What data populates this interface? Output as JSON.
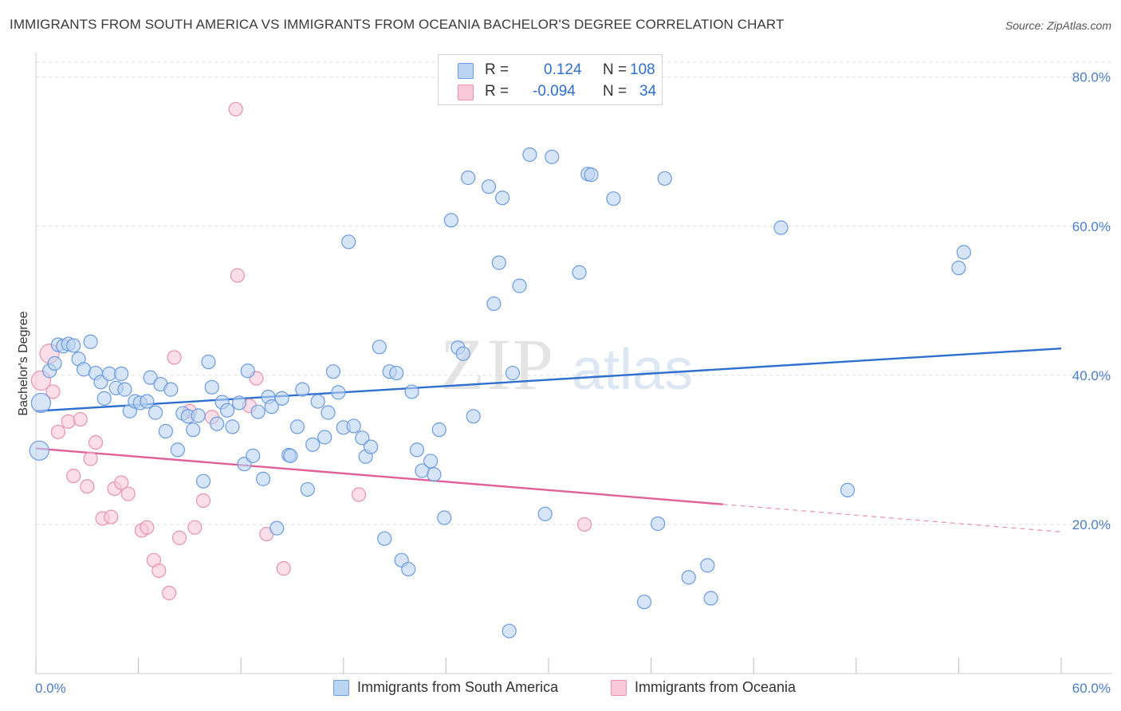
{
  "header": {
    "title": "IMMIGRANTS FROM SOUTH AMERICA VS IMMIGRANTS FROM OCEANIA BACHELOR'S DEGREE CORRELATION CHART",
    "source": "Source: ZipAtlas.com"
  },
  "legend": {
    "r_label": "R =",
    "n_label": "N =",
    "series_a": {
      "r": "0.124",
      "n": "108"
    },
    "series_b": {
      "r": "-0.094",
      "n": "34"
    }
  },
  "bottom_legend": {
    "series_a": "Immigrants from South America",
    "series_b": "Immigrants from Oceania"
  },
  "watermark": {
    "zip": "ZIP",
    "atlas": "atlas"
  },
  "chart_data": {
    "type": "scatter",
    "xlabel": "",
    "ylabel": "Bachelor's Degree",
    "xlim": [
      0,
      60
    ],
    "ylim": [
      0,
      82
    ],
    "x_tick_labels": [
      "0.0%",
      "60.0%"
    ],
    "y_ticks": [
      20,
      40,
      60,
      80
    ],
    "y_tick_labels": [
      "20.0%",
      "40.0%",
      "60.0%",
      "80.0%"
    ],
    "grid": true,
    "colors": {
      "series_a": "#6b9be0",
      "series_a_fill": "#bcd4f4",
      "series_a_line": "#2e6fcf",
      "series_b": "#e892ae",
      "series_b_fill": "#f8c8d8",
      "series_b_line": "#e0609a"
    },
    "series": [
      {
        "name": "Immigrants from South America",
        "trend": {
          "x": [
            0,
            60
          ],
          "y": [
            35.2,
            43.6
          ]
        },
        "points": [
          [
            0.3,
            36.3
          ],
          [
            0.2,
            29.9
          ],
          [
            0.8,
            40.6
          ],
          [
            1.1,
            41.6
          ],
          [
            1.3,
            44.1
          ],
          [
            1.6,
            43.9
          ],
          [
            1.9,
            44.2
          ],
          [
            2.2,
            44.0
          ],
          [
            2.5,
            42.2
          ],
          [
            2.8,
            40.8
          ],
          [
            3.2,
            44.5
          ],
          [
            3.5,
            40.3
          ],
          [
            3.8,
            39.1
          ],
          [
            4.0,
            36.9
          ],
          [
            4.3,
            40.2
          ],
          [
            4.7,
            38.3
          ],
          [
            5.0,
            40.2
          ],
          [
            5.2,
            38.1
          ],
          [
            5.5,
            35.2
          ],
          [
            5.8,
            36.5
          ],
          [
            6.1,
            36.3
          ],
          [
            6.5,
            36.5
          ],
          [
            6.7,
            39.7
          ],
          [
            7.0,
            35.0
          ],
          [
            7.3,
            38.8
          ],
          [
            7.6,
            32.5
          ],
          [
            7.9,
            38.1
          ],
          [
            8.3,
            30.0
          ],
          [
            8.6,
            34.9
          ],
          [
            8.9,
            34.5
          ],
          [
            9.2,
            32.7
          ],
          [
            9.5,
            34.6
          ],
          [
            9.8,
            25.8
          ],
          [
            10.1,
            41.8
          ],
          [
            10.3,
            38.4
          ],
          [
            10.6,
            33.5
          ],
          [
            10.9,
            36.4
          ],
          [
            11.2,
            35.3
          ],
          [
            11.5,
            33.1
          ],
          [
            11.9,
            36.3
          ],
          [
            12.2,
            28.1
          ],
          [
            12.4,
            40.6
          ],
          [
            12.7,
            29.2
          ],
          [
            13.0,
            35.1
          ],
          [
            13.3,
            26.1
          ],
          [
            13.6,
            37.1
          ],
          [
            13.8,
            35.8
          ],
          [
            14.1,
            19.5
          ],
          [
            14.4,
            36.9
          ],
          [
            14.8,
            29.3
          ],
          [
            14.9,
            29.2
          ],
          [
            15.3,
            33.1
          ],
          [
            15.6,
            38.1
          ],
          [
            15.9,
            24.7
          ],
          [
            16.2,
            30.7
          ],
          [
            16.5,
            36.5
          ],
          [
            16.9,
            31.7
          ],
          [
            17.1,
            35.0
          ],
          [
            17.4,
            40.5
          ],
          [
            17.7,
            37.7
          ],
          [
            18.0,
            33.0
          ],
          [
            18.3,
            57.9
          ],
          [
            18.6,
            33.2
          ],
          [
            19.1,
            31.6
          ],
          [
            19.3,
            29.1
          ],
          [
            19.6,
            30.4
          ],
          [
            20.1,
            43.8
          ],
          [
            20.4,
            18.1
          ],
          [
            20.7,
            40.5
          ],
          [
            21.1,
            40.3
          ],
          [
            21.4,
            15.2
          ],
          [
            21.8,
            14.0
          ],
          [
            22.0,
            37.8
          ],
          [
            22.3,
            30.0
          ],
          [
            22.6,
            27.2
          ],
          [
            23.1,
            28.5
          ],
          [
            23.3,
            26.7
          ],
          [
            23.6,
            32.7
          ],
          [
            23.9,
            20.9
          ],
          [
            24.3,
            60.8
          ],
          [
            24.7,
            43.7
          ],
          [
            25.0,
            42.9
          ],
          [
            25.3,
            66.5
          ],
          [
            25.6,
            34.5
          ],
          [
            26.5,
            65.3
          ],
          [
            26.8,
            49.6
          ],
          [
            27.1,
            55.1
          ],
          [
            27.3,
            63.8
          ],
          [
            27.7,
            5.7
          ],
          [
            27.9,
            40.3
          ],
          [
            28.3,
            52.0
          ],
          [
            28.9,
            69.6
          ],
          [
            29.8,
            21.4
          ],
          [
            30.2,
            69.3
          ],
          [
            31.8,
            53.8
          ],
          [
            32.3,
            67.0
          ],
          [
            32.5,
            66.9
          ],
          [
            33.8,
            63.7
          ],
          [
            35.6,
            9.6
          ],
          [
            36.4,
            20.1
          ],
          [
            36.8,
            66.4
          ],
          [
            38.2,
            12.9
          ],
          [
            39.3,
            14.5
          ],
          [
            39.5,
            10.1
          ],
          [
            43.6,
            59.8
          ],
          [
            47.5,
            24.6
          ],
          [
            54.0,
            54.4
          ],
          [
            54.3,
            56.5
          ]
        ]
      },
      {
        "name": "Immigrants from Oceania",
        "trend": {
          "x": [
            0,
            40.2
          ],
          "y": [
            30.2,
            22.7
          ],
          "extended": {
            "x": [
              40.2,
              60
            ],
            "y": [
              22.7,
              19.0
            ]
          }
        },
        "points": [
          [
            0.3,
            39.3
          ],
          [
            0.8,
            42.9
          ],
          [
            1.0,
            37.8
          ],
          [
            1.3,
            32.4
          ],
          [
            1.9,
            33.8
          ],
          [
            2.2,
            26.5
          ],
          [
            2.6,
            34.1
          ],
          [
            3.0,
            25.1
          ],
          [
            3.2,
            28.8
          ],
          [
            3.5,
            31.0
          ],
          [
            3.9,
            20.8
          ],
          [
            4.4,
            21.0
          ],
          [
            4.6,
            24.8
          ],
          [
            5.0,
            25.6
          ],
          [
            5.4,
            24.1
          ],
          [
            6.2,
            19.2
          ],
          [
            6.5,
            19.6
          ],
          [
            6.9,
            15.2
          ],
          [
            7.2,
            13.8
          ],
          [
            7.8,
            10.8
          ],
          [
            8.1,
            42.4
          ],
          [
            8.4,
            18.2
          ],
          [
            9.0,
            35.2
          ],
          [
            9.3,
            19.6
          ],
          [
            9.8,
            23.2
          ],
          [
            10.3,
            34.4
          ],
          [
            11.7,
            75.7
          ],
          [
            11.8,
            53.4
          ],
          [
            12.5,
            35.9
          ],
          [
            12.9,
            39.6
          ],
          [
            13.5,
            18.7
          ],
          [
            14.5,
            14.1
          ],
          [
            18.9,
            24.0
          ],
          [
            32.1,
            20.0
          ]
        ]
      }
    ]
  }
}
